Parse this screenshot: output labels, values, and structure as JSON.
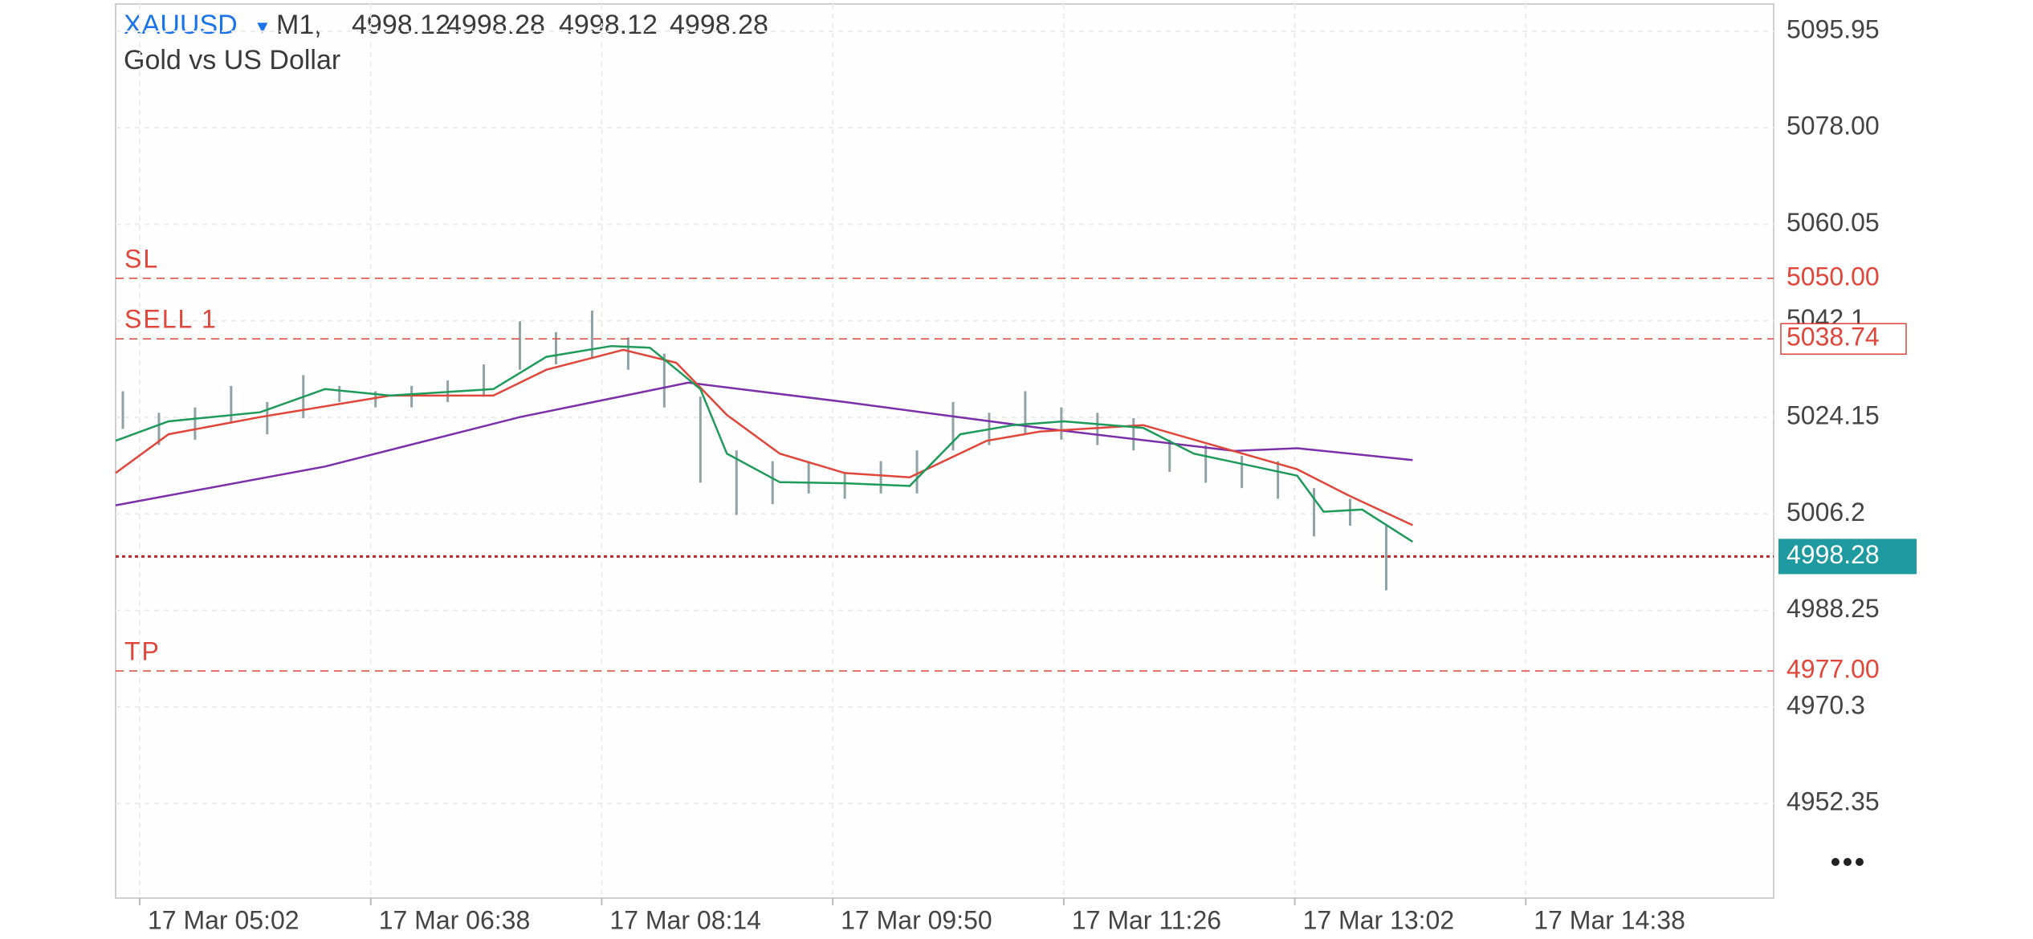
{
  "header": {
    "symbol": "XAUUSD",
    "timeframe": "M1,",
    "ohlc": [
      4998.12,
      4998.28,
      4998.12,
      4998.28
    ],
    "description": "Gold vs US Dollar"
  },
  "chart_data": {
    "type": "candlestick",
    "xlim": [
      "17 Mar 04:52",
      "17 Mar 16:21"
    ],
    "xticks": [
      "17 Mar 05:02",
      "17 Mar 06:38",
      "17 Mar 08:14",
      "17 Mar 09:50",
      "17 Mar 11:26",
      "17 Mar 13:02",
      "17 Mar 14:38"
    ],
    "ylim": [
      4934.76,
      5101.01
    ],
    "yticks": [
      5095.95,
      {
        "value": 5078,
        "label": "5078.00"
      },
      5060.05,
      5042.1,
      5024.15,
      5006.2,
      4988.25,
      4970.3,
      4952.35
    ],
    "grid": true,
    "candle_color": "#8fa3a6",
    "candles": {
      "x": [
        "17 Mar 04:55",
        "17 Mar 05:10",
        "17 Mar 05:25",
        "17 Mar 05:40",
        "17 Mar 05:55",
        "17 Mar 06:10",
        "17 Mar 06:25",
        "17 Mar 06:40",
        "17 Mar 06:55",
        "17 Mar 07:10",
        "17 Mar 07:25",
        "17 Mar 07:40",
        "17 Mar 07:55",
        "17 Mar 08:10",
        "17 Mar 08:25",
        "17 Mar 08:40",
        "17 Mar 08:55",
        "17 Mar 09:10",
        "17 Mar 09:25",
        "17 Mar 09:40",
        "17 Mar 09:55",
        "17 Mar 10:10",
        "17 Mar 10:25",
        "17 Mar 10:40",
        "17 Mar 10:55",
        "17 Mar 11:10",
        "17 Mar 11:25",
        "17 Mar 11:40",
        "17 Mar 11:55",
        "17 Mar 12:10",
        "17 Mar 12:25",
        "17 Mar 12:40",
        "17 Mar 12:55",
        "17 Mar 13:10",
        "17 Mar 13:25",
        "17 Mar 13:40"
      ],
      "high": [
        5029,
        5025,
        5026,
        5030,
        5027,
        5032,
        5030,
        5029,
        5030,
        5031,
        5034,
        5042,
        5040,
        5044,
        5039,
        5036,
        5028,
        5018,
        5016,
        5016,
        5014,
        5016,
        5018,
        5027,
        5025,
        5029,
        5026,
        5025,
        5024,
        5020,
        5019,
        5017,
        5016,
        5011,
        5009,
        5004
      ],
      "low": [
        5022,
        5019,
        5020,
        5023,
        5021,
        5024,
        5027,
        5026,
        5026,
        5027,
        5028,
        5033,
        5034,
        5035,
        5033,
        5026,
        5012,
        5006,
        5008,
        5010,
        5009,
        5010,
        5010,
        5018,
        5019,
        5021,
        5020,
        5019,
        5018,
        5014,
        5012,
        5011,
        5009,
        5002,
        5004,
        4992
      ]
    },
    "series": [
      {
        "color": "#7b2fa8",
        "x": [
          "17 Mar 04:52",
          "17 Mar 06:19",
          "17 Mar 07:40",
          "17 Mar 08:50",
          "17 Mar 09:55",
          "17 Mar 11:16",
          "17 Mar 12:37",
          "17 Mar 13:03",
          "17 Mar 13:51"
        ],
        "values": [
          5007.8,
          5015,
          5024.2,
          5030.6,
          5027,
          5022.2,
          5017.9,
          5018.4,
          5016.2
        ]
      },
      {
        "color": "#e0463a",
        "x": [
          "17 Mar 04:52",
          "17 Mar 05:14",
          "17 Mar 05:52",
          "17 Mar 06:46",
          "17 Mar 07:29",
          "17 Mar 07:51",
          "17 Mar 08:23",
          "17 Mar 08:45",
          "17 Mar 09:06",
          "17 Mar 09:28",
          "17 Mar 09:55",
          "17 Mar 10:22",
          "17 Mar 10:54",
          "17 Mar 11:16",
          "17 Mar 11:59",
          "17 Mar 12:31",
          "17 Mar 13:03",
          "17 Mar 13:24",
          "17 Mar 13:51"
        ],
        "values": [
          5013.8,
          5021,
          5024.2,
          5028.2,
          5028.2,
          5033,
          5036.7,
          5034.3,
          5024.6,
          5017.4,
          5013.8,
          5013,
          5019.8,
          5021.5,
          5022.7,
          5018.6,
          5014.5,
          5009.7,
          5004.1
        ]
      },
      {
        "color": "#1e9a5a",
        "x": [
          "17 Mar 04:52",
          "17 Mar 05:14",
          "17 Mar 05:52",
          "17 Mar 06:19",
          "17 Mar 06:46",
          "17 Mar 07:29",
          "17 Mar 07:51",
          "17 Mar 08:18",
          "17 Mar 08:34",
          "17 Mar 08:55",
          "17 Mar 09:06",
          "17 Mar 09:28",
          "17 Mar 09:55",
          "17 Mar 10:22",
          "17 Mar 10:43",
          "17 Mar 11:05",
          "17 Mar 11:26",
          "17 Mar 11:59",
          "17 Mar 12:20",
          "17 Mar 13:03",
          "17 Mar 13:14",
          "17 Mar 13:30",
          "17 Mar 13:51"
        ],
        "values": [
          5019.8,
          5023.4,
          5025.1,
          5029.4,
          5028.2,
          5029.4,
          5035.4,
          5037.4,
          5037.1,
          5029.4,
          5017.4,
          5012.1,
          5011.9,
          5011.4,
          5021,
          5022.7,
          5023.4,
          5022.2,
          5017.4,
          5013.3,
          5006.6,
          5007,
          5001
        ]
      }
    ],
    "levels": [
      {
        "name": "SL",
        "value": 5050,
        "value_label": "5050.00",
        "color": "#e0463a",
        "style": "text"
      },
      {
        "name": "SELL 1",
        "value": 5038.74,
        "color": "#e0463a",
        "style": "box"
      },
      {
        "value": 4998.28,
        "color": "#1e9aa0",
        "style": "current"
      },
      {
        "name": "TP",
        "value": 4977,
        "value_label": "4977.00",
        "color": "#e0463a",
        "style": "text"
      }
    ]
  }
}
